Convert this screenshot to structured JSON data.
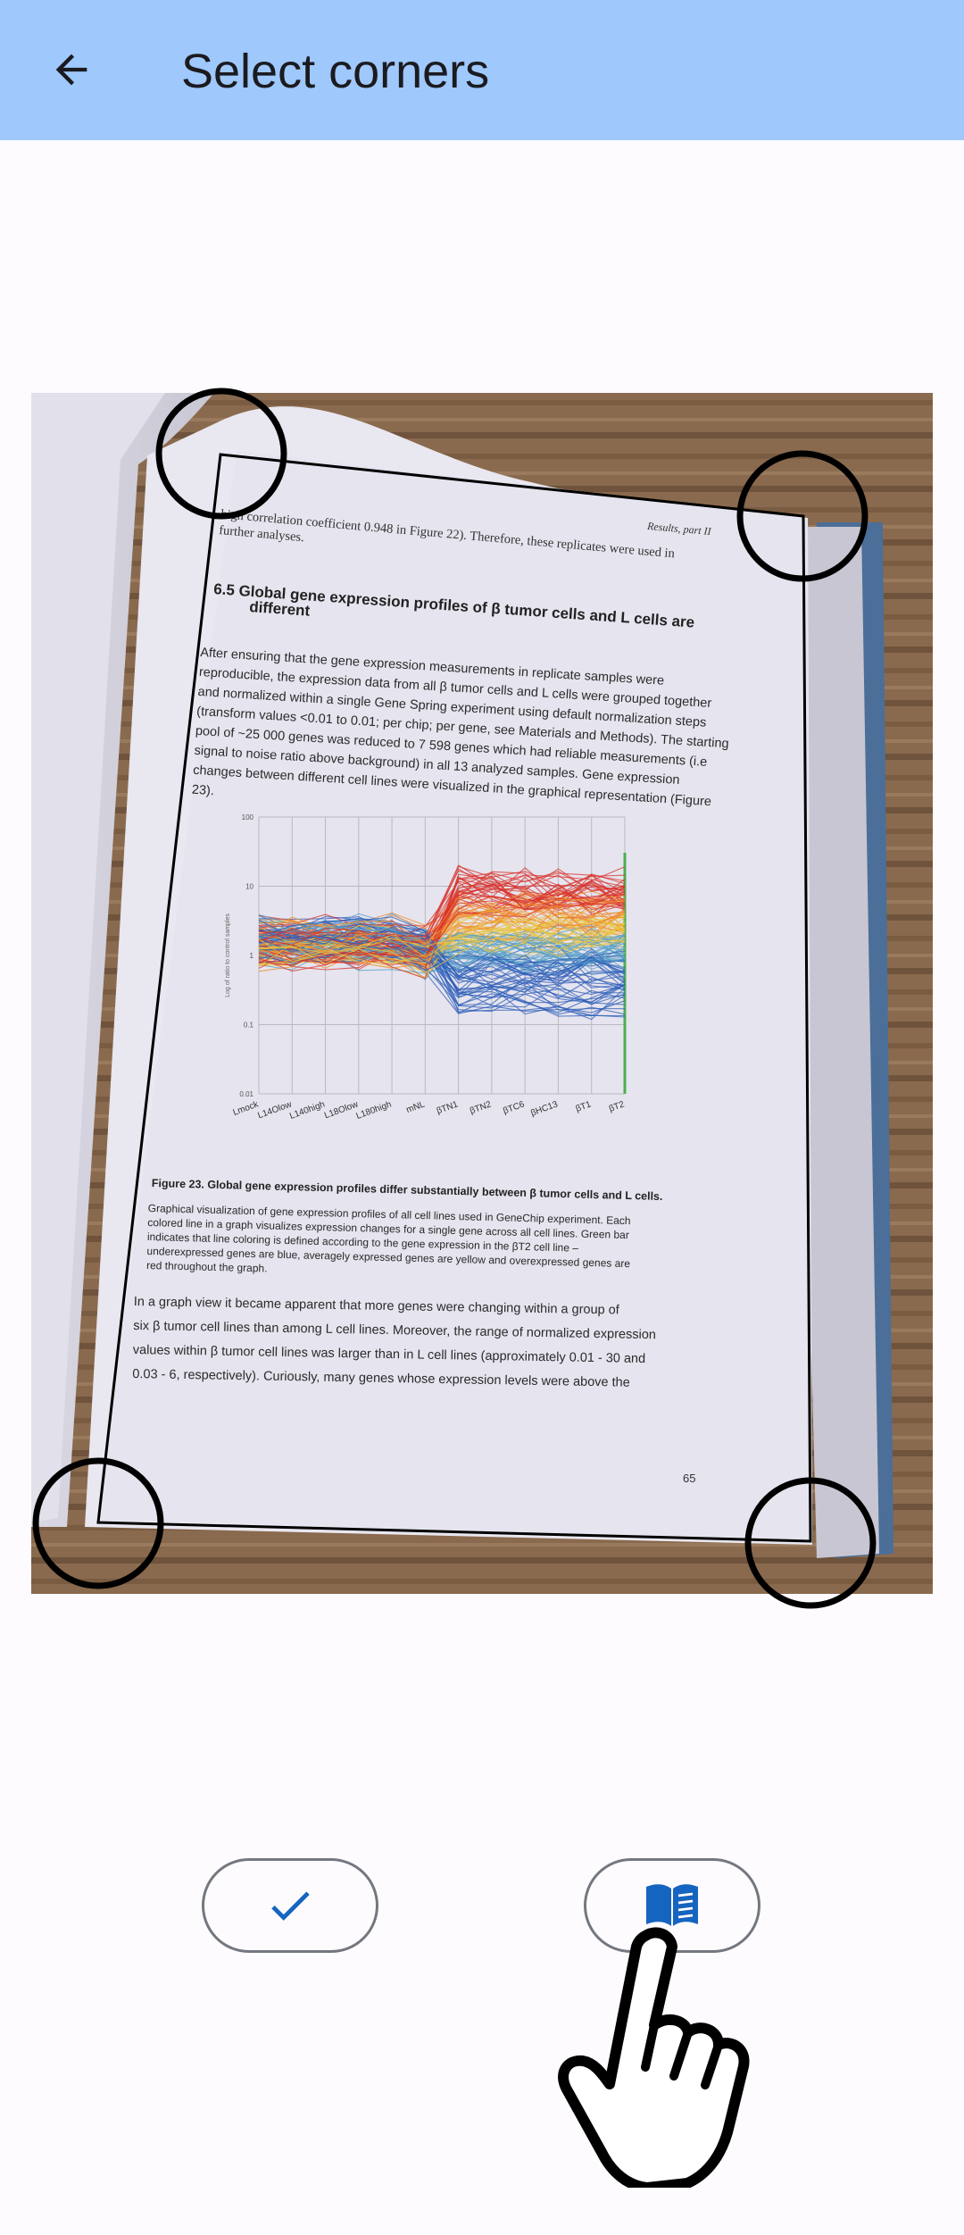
{
  "appbar": {
    "title": "Select corners",
    "back_icon": "arrow-left-icon"
  },
  "document": {
    "header": "Results, part II",
    "intro_line_1": "high correlation coefficient 0.948 in Figure 22). Therefore, these replicates were used in",
    "intro_line_2": "further analyses.",
    "section_title_1": "6.5 Global gene expression profiles of β tumor cells and L cells are",
    "section_title_2": "different",
    "para1": [
      "After ensuring that the gene expression measurements in replicate samples were",
      "reproducible, the expression data from all β tumor cells and L cells were grouped together",
      "and normalized within a single Gene Spring experiment using default normalization steps",
      "(transform values <0.01 to 0.01; per chip; per gene, see Materials and Methods). The starting",
      "pool of ~25 000 genes was reduced to 7 598 genes which had reliable measurements (i.e",
      "signal to noise ratio above background) in all 13 analyzed samples. Gene expression",
      "changes between different cell lines were visualized in the graphical representation (Figure",
      "23)."
    ],
    "chart_ylabel": "Log of ratio to control samples",
    "chart_yticks": [
      "100",
      "10",
      "1",
      "0.1",
      "0.01"
    ],
    "chart_xticks": [
      "Lmock",
      "L14Olow",
      "L140high",
      "L18Olow",
      "L180high",
      "mNL",
      "βTN1",
      "βTN2",
      "βTC6",
      "βHC13",
      "βT1",
      "βT2"
    ],
    "figure_caption_title": "Figure 23. Global gene expression profiles differ substantially between β tumor cells and L cells.",
    "figure_caption": [
      "Graphical visualization of gene expression profiles of all cell lines used in GeneChip experiment. Each",
      "colored line in a graph visualizes expression changes for a single gene across all cell lines. Green bar",
      "indicates that line coloring is defined according to the gene expression in the βT2 cell line –",
      "underexpressed genes are blue, averagely expressed genes are yellow and overexpressed genes are",
      "red throughout the graph."
    ],
    "para2": [
      "In a graph view it became apparent that more genes were changing within a group of",
      "six β tumor cell lines than among L cell lines. Moreover, the range of normalized expression",
      "values within β tumor cell lines was larger than in L cell lines (approximately 0.01 - 30 and",
      "0.03 - 6, respectively). Curiously, many genes whose expression levels were above the"
    ],
    "page_number": "65"
  },
  "buttons": {
    "confirm_icon": "checkmark-icon",
    "book_icon": "open-book-icon"
  },
  "cursor": {
    "icon": "hand-pointer-icon"
  },
  "colors": {
    "appbar": "#9fc8fc",
    "accent": "#1565c0",
    "outline": "#74777f"
  }
}
